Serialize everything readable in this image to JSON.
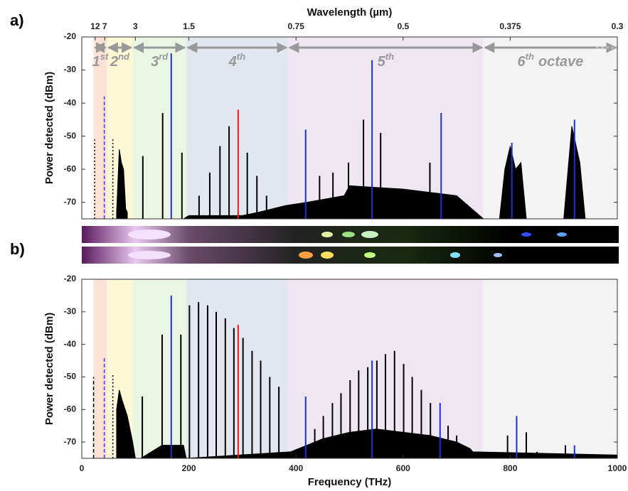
{
  "chart_data": [
    {
      "type": "spectrum",
      "panel": "a)",
      "ylabel": "Power detected (dBm)",
      "x2label": "Wavelength (µm)",
      "xlim": [
        0,
        1000
      ],
      "ylim": [
        -75,
        -20
      ],
      "yticks": [
        -70,
        -60,
        -50,
        -40,
        -30,
        -20
      ],
      "x2ticks": [
        12,
        7,
        3,
        1.5,
        0.75,
        0.5,
        0.375,
        0.3
      ],
      "bands": [
        {
          "from": 22,
          "to": 47,
          "color": "#fadccf",
          "label": "1",
          "sup": "st"
        },
        {
          "from": 47,
          "to": 95,
          "color": "#fbf6cc",
          "label": "2",
          "sup": "nd"
        },
        {
          "from": 95,
          "to": 195,
          "color": "#e6f5dc",
          "label": "3",
          "sup": "rd"
        },
        {
          "from": 195,
          "to": 385,
          "color": "#dde3ec",
          "label": "4",
          "sup": "th"
        },
        {
          "from": 385,
          "to": 750,
          "color": "#ebe2ef",
          "label": "5",
          "sup": "th"
        },
        {
          "from": 750,
          "to": 1000,
          "color": "#f1f1f1",
          "label": "6",
          "sup": "th",
          "suffix": "octave"
        }
      ],
      "floor": {
        "color": "#000",
        "x": [
          65,
          70,
          74,
          78,
          82,
          85,
          95,
          100,
          190,
          200,
          300,
          330,
          380,
          420,
          490,
          500,
          600,
          700,
          750,
          780,
          790,
          800,
          810,
          820,
          830,
          900,
          915,
          930,
          940,
          1000
        ],
        "values": [
          -73,
          -54,
          -58,
          -60,
          -72,
          -73,
          null,
          -75,
          -75,
          -74,
          -74,
          -73,
          -71,
          -70,
          -68,
          -65,
          -66,
          -68,
          -75,
          -75,
          -60,
          -53,
          -60,
          -58,
          -75,
          -75,
          -47,
          -58,
          -75,
          -75
        ]
      },
      "series": [
        {
          "color": "#000",
          "style": "dotted",
          "x": [
            24,
            58
          ],
          "values": [
            -51,
            -51
          ]
        },
        {
          "color": "#3344ee",
          "style": "dashed",
          "x": [
            42
          ],
          "values": [
            -38
          ]
        },
        {
          "color": "#000",
          "style": "stem",
          "x": [
            114,
            151,
            187,
            219,
            239,
            258,
            275,
            309,
            327,
            345,
            444,
            469,
            498,
            526,
            558,
            650
          ],
          "values": [
            -56,
            -43,
            -55,
            -68,
            -61,
            -53,
            -47,
            -55,
            -62,
            -68,
            -62,
            -61,
            -58,
            -45,
            -49,
            -58
          ]
        },
        {
          "color": "#1a2fe0",
          "style": "stem",
          "x": [
            167,
            418,
            542,
            671,
            803,
            920
          ],
          "values": [
            -25,
            -48,
            -27,
            -43,
            -52,
            -45
          ]
        },
        {
          "color": "#e02020",
          "style": "stem",
          "x": [
            292
          ],
          "values": [
            -42
          ]
        }
      ]
    },
    {
      "type": "spectrum",
      "panel": "b)",
      "ylabel": "Power detected (dBm)",
      "xlabel": "Frequency (THz)",
      "xlim": [
        0,
        1000
      ],
      "ylim": [
        -75,
        -20
      ],
      "yticks": [
        -70,
        -60,
        -50,
        -40,
        -30,
        -20
      ],
      "xticks": [
        0,
        200,
        400,
        600,
        800,
        1000
      ],
      "floor": {
        "color": "#000",
        "x": [
          65,
          70,
          75,
          85,
          95,
          100,
          110,
          130,
          150,
          190,
          195,
          390,
          420,
          450,
          500,
          550,
          600,
          650,
          700,
          725,
          730,
          1000
        ],
        "values": [
          -60,
          -54,
          -57,
          -62,
          -70,
          -75,
          -75,
          -73,
          -71,
          -71,
          -75,
          -73,
          -71,
          -69,
          -67,
          -66,
          -67,
          -68,
          -70,
          -72,
          -73,
          -74
        ]
      },
      "series": [
        {
          "color": "#000",
          "style": "dashed",
          "x": [
            22
          ],
          "values": [
            -50
          ]
        },
        {
          "color": "#3344ee",
          "style": "dashed",
          "x": [
            42
          ],
          "values": [
            -44
          ]
        },
        {
          "color": "#000",
          "style": "dotted",
          "x": [
            58
          ],
          "values": [
            -49
          ]
        },
        {
          "color": "#000",
          "style": "stem",
          "x": [
            113,
            150,
            185,
            201,
            218,
            235,
            251,
            268,
            284,
            301,
            318,
            334,
            351,
            368,
            435,
            451,
            468,
            484,
            501,
            517,
            534,
            551,
            567,
            584,
            601,
            617,
            634,
            651,
            684,
            700,
            795,
            830,
            850,
            903
          ],
          "values": [
            -56,
            -37,
            -37,
            -28,
            -27,
            -28,
            -30,
            -32,
            -35,
            -38,
            -42,
            -45,
            -50,
            -53,
            -66,
            -62,
            -58,
            -55,
            -51,
            -48,
            -47,
            -45,
            -43,
            -42,
            -46,
            -50,
            -54,
            -58,
            -65,
            -68,
            -68,
            -67,
            -73,
            -71
          ]
        },
        {
          "color": "#1a2fe0",
          "style": "stem",
          "x": [
            167,
            418,
            542,
            669,
            812,
            920
          ],
          "values": [
            -25,
            -56,
            -45,
            -58,
            -62,
            -71
          ]
        },
        {
          "color": "#e02020",
          "style": "stem",
          "x": [
            292
          ],
          "values": [
            -34
          ]
        }
      ]
    }
  ]
}
